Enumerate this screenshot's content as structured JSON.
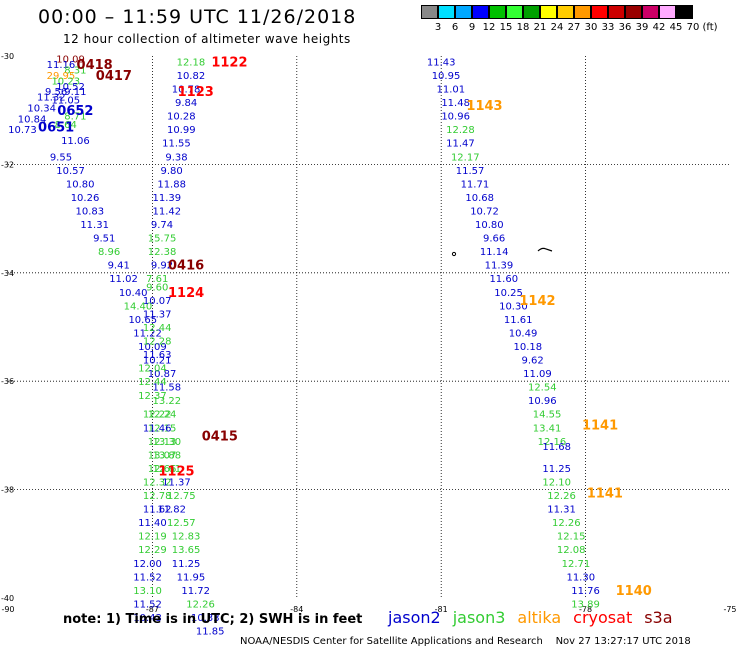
{
  "title": "00:00 – 11:59 UTC 11/26/2018",
  "subtitle": "12 hour collection of altimeter wave heights",
  "colorbar": {
    "labels": [
      "3",
      "6",
      "9",
      "12",
      "15",
      "18",
      "21",
      "24",
      "27",
      "30",
      "33",
      "36",
      "39",
      "42",
      "45",
      "70",
      "(ft)"
    ],
    "colors": [
      "#888888",
      "#00e0ff",
      "#00a8ff",
      "#0000ff",
      "#00c000",
      "#33ff33",
      "#00a000",
      "#ffff00",
      "#ffcc00",
      "#ff9900",
      "#ff0000",
      "#cc0000",
      "#990000",
      "#cc0066",
      "#ffaaff",
      "#000000"
    ]
  },
  "axes": {
    "x_labels": [
      "-90",
      "-87",
      "-84",
      "-81",
      "-78",
      "-75"
    ],
    "y_labels": [
      "-30",
      "-32",
      "-34",
      "-36",
      "-38",
      "-40"
    ]
  },
  "colors": {
    "jason2": "#0000cc",
    "jason3": "#33cc33",
    "altika": "#ff9900",
    "cryosat": "#ff0000",
    "s3a": "#880000"
  },
  "passes": [
    {
      "label": "1122",
      "sat": "cryosat",
      "lon": -85.4,
      "lat": -30.1
    },
    {
      "label": "0418",
      "sat": "s3a",
      "lon": -88.2,
      "lat": -30.15
    },
    {
      "label": "0417",
      "sat": "s3a",
      "lon": -87.8,
      "lat": -30.35
    },
    {
      "label": "1123",
      "sat": "cryosat",
      "lon": -86.1,
      "lat": -30.65
    },
    {
      "label": "0652",
      "sat": "jason2",
      "lon": -88.6,
      "lat": -31.0
    },
    {
      "label": "0651",
      "sat": "jason2",
      "lon": -89.0,
      "lat": -31.3
    },
    {
      "label": "1143",
      "sat": "altika",
      "lon": -80.1,
      "lat": -30.9
    },
    {
      "label": "0416",
      "sat": "s3a",
      "lon": -86.3,
      "lat": -33.85
    },
    {
      "label": "1124",
      "sat": "cryosat",
      "lon": -86.3,
      "lat": -34.35
    },
    {
      "label": "1142",
      "sat": "altika",
      "lon": -79.0,
      "lat": -34.5
    },
    {
      "label": "0415",
      "sat": "s3a",
      "lon": -85.6,
      "lat": -37.0
    },
    {
      "label": "1141",
      "sat": "altika",
      "lon": -77.7,
      "lat": -36.8
    },
    {
      "label": "1125",
      "sat": "cryosat",
      "lon": -86.5,
      "lat": -37.65
    },
    {
      "label": "1141",
      "sat": "altika",
      "lon": -77.6,
      "lat": -38.05
    },
    {
      "label": "1140",
      "sat": "altika",
      "lon": -77.0,
      "lat": -39.85
    }
  ],
  "tracks": [
    {
      "sat": "s3a",
      "lon": -88.7,
      "lat": -30.05,
      "v": "10.09"
    },
    {
      "sat": "jason2",
      "lon": -88.9,
      "lat": -30.15,
      "v": "11.16"
    },
    {
      "sat": "jason3",
      "lon": -88.6,
      "lat": -30.25,
      "v": "8.31"
    },
    {
      "sat": "altika",
      "lon": -88.9,
      "lat": -30.35,
      "v": "29.95"
    },
    {
      "sat": "jason3",
      "lon": -88.8,
      "lat": -30.45,
      "v": "10.23"
    },
    {
      "sat": "jason2",
      "lon": -88.7,
      "lat": -30.55,
      "v": "10.52"
    },
    {
      "sat": "jason2",
      "lon": -89.0,
      "lat": -30.65,
      "v": "9.56"
    },
    {
      "sat": "jason2",
      "lon": -88.6,
      "lat": -30.65,
      "v": "9.11"
    },
    {
      "sat": "jason2",
      "lon": -89.1,
      "lat": -30.75,
      "v": "11.32"
    },
    {
      "sat": "jason2",
      "lon": -88.8,
      "lat": -30.8,
      "v": "11.05"
    },
    {
      "sat": "jason2",
      "lon": -89.3,
      "lat": -30.95,
      "v": "10.34"
    },
    {
      "sat": "jason2",
      "lon": -89.5,
      "lat": -31.15,
      "v": "10.84"
    },
    {
      "sat": "jason3",
      "lon": -88.6,
      "lat": -31.1,
      "v": "8.71"
    },
    {
      "sat": "jason2",
      "lon": -89.7,
      "lat": -31.35,
      "v": "10.73"
    },
    {
      "sat": "jason3",
      "lon": -88.8,
      "lat": -31.25,
      "v": "8.64"
    },
    {
      "sat": "jason2",
      "lon": -88.6,
      "lat": -31.55,
      "v": "11.06"
    },
    {
      "sat": "jason2",
      "lon": -88.9,
      "lat": -31.85,
      "v": "9.55"
    },
    {
      "sat": "jason2",
      "lon": -88.7,
      "lat": -32.1,
      "v": "10.57"
    },
    {
      "sat": "jason2",
      "lon": -88.5,
      "lat": -32.35,
      "v": "10.80"
    },
    {
      "sat": "jason2",
      "lon": -88.4,
      "lat": -32.6,
      "v": "10.26"
    },
    {
      "sat": "jason2",
      "lon": -88.3,
      "lat": -32.85,
      "v": "10.83"
    },
    {
      "sat": "jason2",
      "lon": -88.2,
      "lat": -33.1,
      "v": "11.31"
    },
    {
      "sat": "jason2",
      "lon": -88.0,
      "lat": -33.35,
      "v": "9.51"
    },
    {
      "sat": "jason3",
      "lon": -87.9,
      "lat": -33.6,
      "v": "8.96"
    },
    {
      "sat": "jason2",
      "lon": -87.7,
      "lat": -33.85,
      "v": "9.41"
    },
    {
      "sat": "jason2",
      "lon": -87.6,
      "lat": -34.1,
      "v": "11.02"
    },
    {
      "sat": "jason2",
      "lon": -87.4,
      "lat": -34.35,
      "v": "10.40"
    },
    {
      "sat": "jason3",
      "lon": -87.3,
      "lat": -34.6,
      "v": "14.40"
    },
    {
      "sat": "jason2",
      "lon": -87.2,
      "lat": -34.85,
      "v": "10.65"
    },
    {
      "sat": "jason2",
      "lon": -87.1,
      "lat": -35.1,
      "v": "11.22"
    },
    {
      "sat": "jason2",
      "lon": -87.0,
      "lat": -35.35,
      "v": "10.09"
    },
    {
      "sat": "jason2",
      "lon": -86.9,
      "lat": -35.6,
      "v": "10.21"
    },
    {
      "sat": "jason2",
      "lon": -86.8,
      "lat": -35.85,
      "v": "10.87"
    },
    {
      "sat": "jason2",
      "lon": -86.7,
      "lat": -36.1,
      "v": "11.58"
    },
    {
      "sat": "jason3",
      "lon": -86.7,
      "lat": -36.35,
      "v": "13.22"
    },
    {
      "sat": "jason3",
      "lon": -86.8,
      "lat": -36.6,
      "v": "12.24"
    },
    {
      "sat": "jason3",
      "lon": -86.8,
      "lat": -36.85,
      "v": "12.15"
    },
    {
      "sat": "jason3",
      "lon": -86.7,
      "lat": -37.1,
      "v": "13.30"
    },
    {
      "sat": "jason3",
      "lon": -86.7,
      "lat": -37.35,
      "v": "13.88"
    },
    {
      "sat": "jason3",
      "lon": -86.8,
      "lat": -37.6,
      "v": "12.66"
    },
    {
      "sat": "jason3",
      "lon": -86.9,
      "lat": -37.85,
      "v": "12.32"
    },
    {
      "sat": "jason3",
      "lon": -86.9,
      "lat": -38.1,
      "v": "12.78"
    },
    {
      "sat": "jason2",
      "lon": -86.9,
      "lat": -38.35,
      "v": "11.62"
    },
    {
      "sat": "jason2",
      "lon": -87.0,
      "lat": -38.6,
      "v": "11.40"
    },
    {
      "sat": "jason3",
      "lon": -87.0,
      "lat": -38.85,
      "v": "12.19"
    },
    {
      "sat": "jason3",
      "lon": -87.0,
      "lat": -39.1,
      "v": "12.29"
    },
    {
      "sat": "jason2",
      "lon": -87.1,
      "lat": -39.35,
      "v": "12.00"
    },
    {
      "sat": "jason2",
      "lon": -87.1,
      "lat": -39.6,
      "v": "11.52"
    },
    {
      "sat": "jason3",
      "lon": -87.1,
      "lat": -39.85,
      "v": "13.10"
    },
    {
      "sat": "jason2",
      "lon": -87.1,
      "lat": -40.1,
      "v": "11.52"
    },
    {
      "sat": "jason2",
      "lon": -87.1,
      "lat": -40.35,
      "v": "10.43"
    },
    {
      "sat": "jason3",
      "lon": -86.2,
      "lat": -30.1,
      "v": "12.18"
    },
    {
      "sat": "jason2",
      "lon": -86.2,
      "lat": -30.35,
      "v": "10.82"
    },
    {
      "sat": "jason2",
      "lon": -86.3,
      "lat": -30.6,
      "v": "10.78"
    },
    {
      "sat": "jason2",
      "lon": -86.3,
      "lat": -30.85,
      "v": "9.84"
    },
    {
      "sat": "jason2",
      "lon": -86.4,
      "lat": -31.1,
      "v": "10.28"
    },
    {
      "sat": "jason2",
      "lon": -86.4,
      "lat": -31.35,
      "v": "10.99"
    },
    {
      "sat": "jason2",
      "lon": -86.5,
      "lat": -31.6,
      "v": "11.55"
    },
    {
      "sat": "jason2",
      "lon": -86.5,
      "lat": -31.85,
      "v": "9.38"
    },
    {
      "sat": "jason2",
      "lon": -86.6,
      "lat": -32.1,
      "v": "9.80"
    },
    {
      "sat": "jason2",
      "lon": -86.6,
      "lat": -32.35,
      "v": "11.88"
    },
    {
      "sat": "jason2",
      "lon": -86.7,
      "lat": -32.6,
      "v": "11.39"
    },
    {
      "sat": "jason2",
      "lon": -86.7,
      "lat": -32.85,
      "v": "11.42"
    },
    {
      "sat": "jason2",
      "lon": -86.8,
      "lat": -33.1,
      "v": "9.74"
    },
    {
      "sat": "jason3",
      "lon": -86.8,
      "lat": -33.35,
      "v": "15.75"
    },
    {
      "sat": "jason3",
      "lon": -86.8,
      "lat": -33.6,
      "v": "12.38"
    },
    {
      "sat": "jason2",
      "lon": -86.8,
      "lat": -33.85,
      "v": "9.92"
    },
    {
      "sat": "jason3",
      "lon": -86.9,
      "lat": -34.1,
      "v": "7.61"
    },
    {
      "sat": "jason3",
      "lon": -86.9,
      "lat": -34.25,
      "v": "9.60"
    },
    {
      "sat": "jason2",
      "lon": -86.9,
      "lat": -34.5,
      "v": "10.07"
    },
    {
      "sat": "jason2",
      "lon": -86.9,
      "lat": -34.75,
      "v": "11.37"
    },
    {
      "sat": "jason3",
      "lon": -86.9,
      "lat": -35.0,
      "v": "12.44"
    },
    {
      "sat": "jason3",
      "lon": -86.9,
      "lat": -35.25,
      "v": "12.28"
    },
    {
      "sat": "jason2",
      "lon": -86.9,
      "lat": -35.5,
      "v": "11.63"
    },
    {
      "sat": "jason3",
      "lon": -87.0,
      "lat": -35.75,
      "v": "12.04"
    },
    {
      "sat": "jason3",
      "lon": -87.0,
      "lat": -36.0,
      "v": "12.44"
    },
    {
      "sat": "jason3",
      "lon": -87.0,
      "lat": -36.25,
      "v": "12.37"
    },
    {
      "sat": "jason3",
      "lon": -86.9,
      "lat": -36.6,
      "v": "12.22"
    },
    {
      "sat": "jason2",
      "lon": -86.9,
      "lat": -36.85,
      "v": "11.46"
    },
    {
      "sat": "jason3",
      "lon": -86.8,
      "lat": -37.1,
      "v": "12.13"
    },
    {
      "sat": "jason3",
      "lon": -86.8,
      "lat": -37.35,
      "v": "13.07"
    },
    {
      "sat": "jason3",
      "lon": -86.7,
      "lat": -37.6,
      "v": "12.61"
    },
    {
      "sat": "jason2",
      "lon": -86.5,
      "lat": -37.85,
      "v": "11.37"
    },
    {
      "sat": "jason3",
      "lon": -86.4,
      "lat": -38.1,
      "v": "12.75"
    },
    {
      "sat": "jason2",
      "lon": -86.6,
      "lat": -38.35,
      "v": "11.82"
    },
    {
      "sat": "jason3",
      "lon": -86.4,
      "lat": -38.6,
      "v": "12.57"
    },
    {
      "sat": "jason3",
      "lon": -86.3,
      "lat": -38.85,
      "v": "12.83"
    },
    {
      "sat": "jason3",
      "lon": -86.3,
      "lat": -39.1,
      "v": "13.65"
    },
    {
      "sat": "jason2",
      "lon": -86.3,
      "lat": -39.35,
      "v": "11.25"
    },
    {
      "sat": "jason2",
      "lon": -86.2,
      "lat": -39.6,
      "v": "11.95"
    },
    {
      "sat": "jason2",
      "lon": -86.1,
      "lat": -39.85,
      "v": "11.72"
    },
    {
      "sat": "jason3",
      "lon": -86.0,
      "lat": -40.1,
      "v": "12.26"
    },
    {
      "sat": "jason2",
      "lon": -85.9,
      "lat": -40.35,
      "v": "10.33"
    },
    {
      "sat": "jason2",
      "lon": -85.8,
      "lat": -40.6,
      "v": "11.85"
    },
    {
      "sat": "jason2",
      "lon": -81.0,
      "lat": -30.1,
      "v": "11.43"
    },
    {
      "sat": "jason2",
      "lon": -80.9,
      "lat": -30.35,
      "v": "10.95"
    },
    {
      "sat": "jason2",
      "lon": -80.8,
      "lat": -30.6,
      "v": "11.01"
    },
    {
      "sat": "jason2",
      "lon": -80.7,
      "lat": -30.85,
      "v": "11.48"
    },
    {
      "sat": "jason2",
      "lon": -80.7,
      "lat": -31.1,
      "v": "10.96"
    },
    {
      "sat": "jason3",
      "lon": -80.6,
      "lat": -31.35,
      "v": "12.28"
    },
    {
      "sat": "jason2",
      "lon": -80.6,
      "lat": -31.6,
      "v": "11.47"
    },
    {
      "sat": "jason3",
      "lon": -80.5,
      "lat": -31.85,
      "v": "12.17"
    },
    {
      "sat": "jason2",
      "lon": -80.4,
      "lat": -32.1,
      "v": "11.57"
    },
    {
      "sat": "jason2",
      "lon": -80.3,
      "lat": -32.35,
      "v": "11.71"
    },
    {
      "sat": "jason2",
      "lon": -80.2,
      "lat": -32.6,
      "v": "10.68"
    },
    {
      "sat": "jason2",
      "lon": -80.1,
      "lat": -32.85,
      "v": "10.72"
    },
    {
      "sat": "jason2",
      "lon": -80.0,
      "lat": -33.1,
      "v": "10.80"
    },
    {
      "sat": "jason2",
      "lon": -79.9,
      "lat": -33.35,
      "v": "9.66"
    },
    {
      "sat": "jason2",
      "lon": -79.9,
      "lat": -33.6,
      "v": "11.14"
    },
    {
      "sat": "jason2",
      "lon": -79.8,
      "lat": -33.85,
      "v": "11.39"
    },
    {
      "sat": "jason2",
      "lon": -79.7,
      "lat": -34.1,
      "v": "11.60"
    },
    {
      "sat": "jason2",
      "lon": -79.6,
      "lat": -34.35,
      "v": "10.25"
    },
    {
      "sat": "jason2",
      "lon": -79.5,
      "lat": -34.6,
      "v": "10.30"
    },
    {
      "sat": "jason2",
      "lon": -79.4,
      "lat": -34.85,
      "v": "11.61"
    },
    {
      "sat": "jason2",
      "lon": -79.3,
      "lat": -35.1,
      "v": "10.49"
    },
    {
      "sat": "jason2",
      "lon": -79.2,
      "lat": -35.35,
      "v": "10.18"
    },
    {
      "sat": "jason2",
      "lon": -79.1,
      "lat": -35.6,
      "v": "9.62"
    },
    {
      "sat": "jason2",
      "lon": -79.0,
      "lat": -35.85,
      "v": "11.09"
    },
    {
      "sat": "jason3",
      "lon": -78.9,
      "lat": -36.1,
      "v": "12.54"
    },
    {
      "sat": "jason2",
      "lon": -78.9,
      "lat": -36.35,
      "v": "10.96"
    },
    {
      "sat": "jason3",
      "lon": -78.8,
      "lat": -36.6,
      "v": "14.55"
    },
    {
      "sat": "jason3",
      "lon": -78.8,
      "lat": -36.85,
      "v": "13.41"
    },
    {
      "sat": "jason3",
      "lon": -78.7,
      "lat": -37.1,
      "v": "12.16"
    },
    {
      "sat": "jason2",
      "lon": -78.6,
      "lat": -37.2,
      "v": "11.68"
    },
    {
      "sat": "jason2",
      "lon": -78.6,
      "lat": -37.6,
      "v": "11.25"
    },
    {
      "sat": "jason3",
      "lon": -78.6,
      "lat": -37.85,
      "v": "12.10"
    },
    {
      "sat": "jason3",
      "lon": -78.5,
      "lat": -38.1,
      "v": "12.26"
    },
    {
      "sat": "jason2",
      "lon": -78.5,
      "lat": -38.35,
      "v": "11.31"
    },
    {
      "sat": "jason3",
      "lon": -78.4,
      "lat": -38.6,
      "v": "12.26"
    },
    {
      "sat": "jason3",
      "lon": -78.3,
      "lat": -38.85,
      "v": "12.15"
    },
    {
      "sat": "jason3",
      "lon": -78.3,
      "lat": -39.1,
      "v": "12.08"
    },
    {
      "sat": "jason3",
      "lon": -78.2,
      "lat": -39.35,
      "v": "12.71"
    },
    {
      "sat": "jason2",
      "lon": -78.1,
      "lat": -39.6,
      "v": "11.30"
    },
    {
      "sat": "jason2",
      "lon": -78.0,
      "lat": -39.85,
      "v": "11.76"
    },
    {
      "sat": "jason3",
      "lon": -78.0,
      "lat": -40.1,
      "v": "13.89"
    }
  ],
  "note": "note:  1) Time is in UTC;  2) SWH is in feet",
  "legend": [
    "jason2",
    "jason3",
    "altika",
    "cryosat",
    "s3a"
  ],
  "footer": "NOAA/NESDIS Center for Satellite Applications and Research    Nov 27 13:27:17 UTC 2018"
}
